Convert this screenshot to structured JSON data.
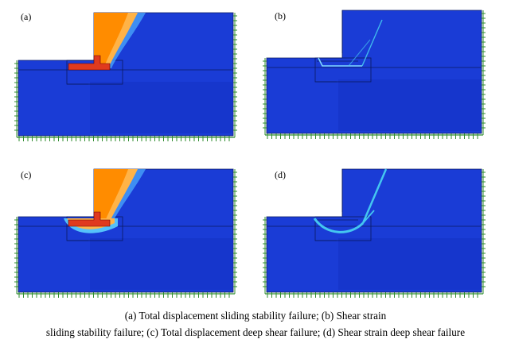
{
  "panels": [
    {
      "label": "(a)",
      "mode": "displacement",
      "variant": "sliding"
    },
    {
      "label": "(b)",
      "mode": "strain",
      "variant": "sliding"
    },
    {
      "label": "(c)",
      "mode": "displacement",
      "variant": "deep"
    },
    {
      "label": "(d)",
      "mode": "strain",
      "variant": "deep"
    }
  ],
  "caption": {
    "line1": "(a) Total displacement sliding stability failure; (b) Shear strain",
    "line2": "sliding stability failure; (c) Total displacement deep shear failure; (d) Shear strain deep shear failure"
  },
  "colors": {
    "background_blue": "#1a3cd6",
    "deep_blue": "#1432c4",
    "ground_green": "#2e8b2e",
    "orange": "#ff8c00",
    "light_orange": "#ffb347",
    "red": "#e03a1e",
    "cyan": "#44c6f0"
  }
}
